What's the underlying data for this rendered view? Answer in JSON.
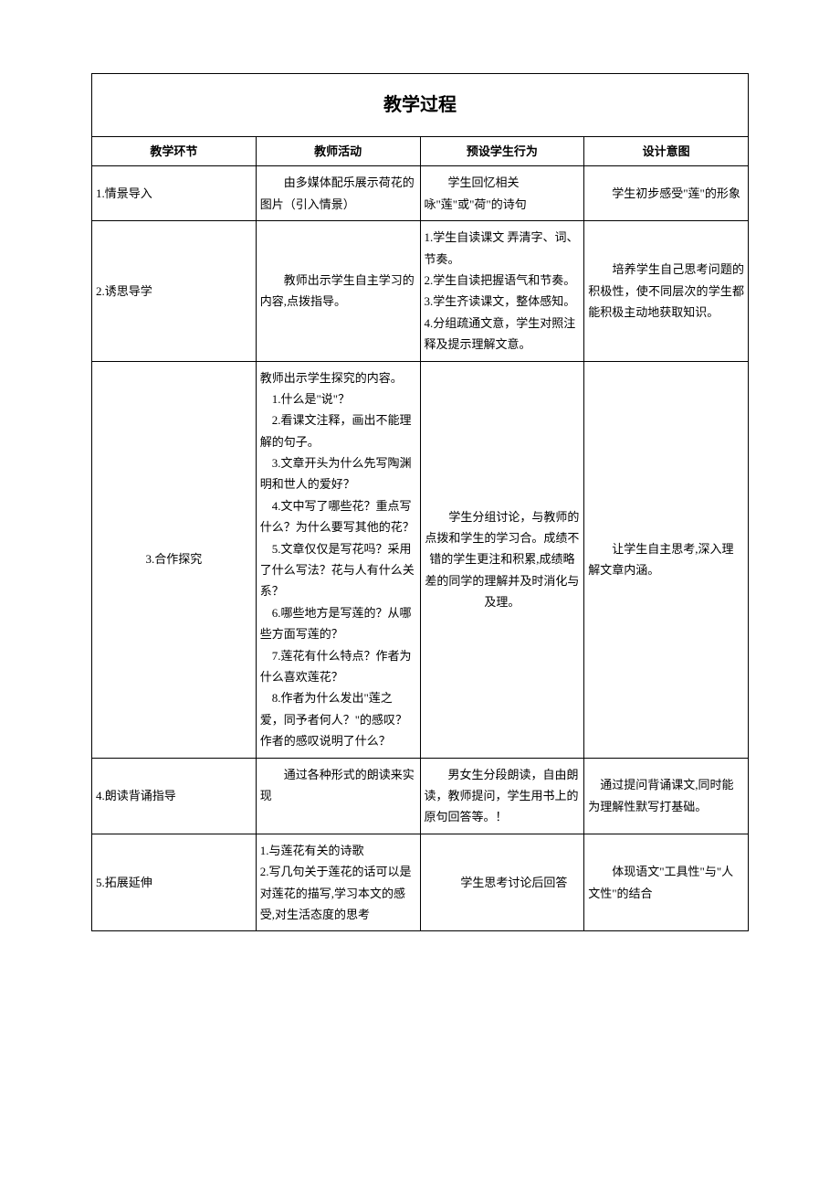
{
  "title": "教学过程",
  "headers": {
    "stage": "教学环节",
    "teacher": "教师活动",
    "student": "预设学生行为",
    "intent": "设计意图"
  },
  "rows": [
    {
      "stage": "1.情景导入",
      "teacher": "　　由多媒体配乐展示荷花的图片（引入情景）",
      "student": "　　学生回忆相关咏\"莲\"或\"荷\"的诗句",
      "intent": "　　学生初步感受\"莲\"的形象"
    },
    {
      "stage": "2.诱思导学",
      "teacher": "　　教师出示学生自主学习的内容,点拨指导。",
      "student_lines": [
        "1.学生自读课文 弄清字、词、节奏。",
        "2.学生自读把握语气和节奏。",
        "3.学生齐读课文，整体感知。",
        "4.分组疏通文意，学生对照注释及提示理解文意。"
      ],
      "intent": "　　培养学生自己思考问题的积极性，使不同层次的学生都能积极主动地获取知识。"
    },
    {
      "stage": "3.合作探究",
      "teacher_lines": [
        "教师出示学生探究的内容。",
        "　1.什么是\"说\"？",
        "　2.看课文注释，画出不能理解的句子。",
        "　3.文章开头为什么先写陶渊明和世人的爱好？",
        "　4.文中写了哪些花？重点写什么？为什么要写其他的花？",
        "　5.文章仅仅是写花吗？采用了什么写法？花与人有什么关系？",
        "　6.哪些地方是写莲的？从哪些方面写莲的？",
        "　7.莲花有什么特点？作者为什么喜欢莲花？",
        "　8.作者为什么发出\"莲之爱，同予者何人？\"的感叹？作者的感叹说明了什么？"
      ],
      "student": "　　学生分组讨论，与教师的点拨和学生的学习合。成绩不错的学生更注和积累,成绩略差的同学的理解并及时消化与及理。",
      "intent": "　　让学生自主思考,深入理解文章内涵。"
    },
    {
      "stage": "4.朗读背诵指导",
      "teacher": "　　通过各种形式的朗读来实现",
      "student": "　　男女生分段朗读，自由朗读，教师提问，学生用书上的原句回答等。！",
      "intent": "　通过提问背诵课文,同时能为理解性默写打基础。"
    },
    {
      "stage": "5.拓展延伸",
      "teacher_lines": [
        "1.与莲花有关的诗歌",
        "2.写几句关于莲花的话可以是对莲花的描写,学习本文的感受,对生活态度的思考"
      ],
      "student": "　　学生思考讨论后回答",
      "intent": "　　体现语文\"工具性\"与\"人文性\"的结合"
    }
  ]
}
